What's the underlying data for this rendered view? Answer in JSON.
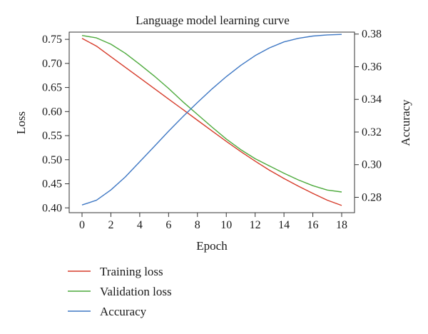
{
  "chart_data": {
    "type": "line",
    "title": "Language model learning curve",
    "xlabel": "Epoch",
    "ylabel_left": "Loss",
    "ylabel_right": "Accuracy",
    "xlim": [
      0,
      18
    ],
    "ylim_left": [
      0.39,
      0.765
    ],
    "ylim_right": [
      0.2706,
      0.3812
    ],
    "x_ticks": [
      0,
      2,
      4,
      6,
      8,
      10,
      12,
      14,
      16,
      18
    ],
    "y_ticks_left": [
      0.4,
      0.45,
      0.5,
      0.55,
      0.6,
      0.65,
      0.7,
      0.75
    ],
    "y_ticks_right": [
      0.28,
      0.3,
      0.32,
      0.34,
      0.36,
      0.38
    ],
    "grid": false,
    "legend_position": "bottom-left, below plot",
    "x": [
      0,
      1,
      2,
      3,
      4,
      5,
      6,
      7,
      8,
      9,
      10,
      11,
      12,
      13,
      14,
      15,
      16,
      17,
      18
    ],
    "series": [
      {
        "name": "Training loss",
        "axis": "left",
        "color": "#d63b2a",
        "values": [
          0.752,
          0.736,
          0.714,
          0.692,
          0.67,
          0.648,
          0.626,
          0.604,
          0.582,
          0.56,
          0.538,
          0.517,
          0.497,
          0.478,
          0.461,
          0.445,
          0.43,
          0.416,
          0.405
        ]
      },
      {
        "name": "Validation loss",
        "axis": "left",
        "color": "#4daa3c",
        "values": [
          0.758,
          0.753,
          0.74,
          0.721,
          0.698,
          0.674,
          0.648,
          0.62,
          0.594,
          0.568,
          0.543,
          0.521,
          0.502,
          0.487,
          0.472,
          0.458,
          0.446,
          0.437,
          0.433
        ]
      },
      {
        "name": "Accuracy",
        "axis": "right",
        "color": "#3f78c4",
        "values": [
          0.2753,
          0.2782,
          0.2845,
          0.2925,
          0.3018,
          0.3111,
          0.3205,
          0.3295,
          0.3381,
          0.3463,
          0.3539,
          0.3608,
          0.3668,
          0.3716,
          0.3752,
          0.3774,
          0.3788,
          0.3795,
          0.3798
        ]
      }
    ]
  }
}
